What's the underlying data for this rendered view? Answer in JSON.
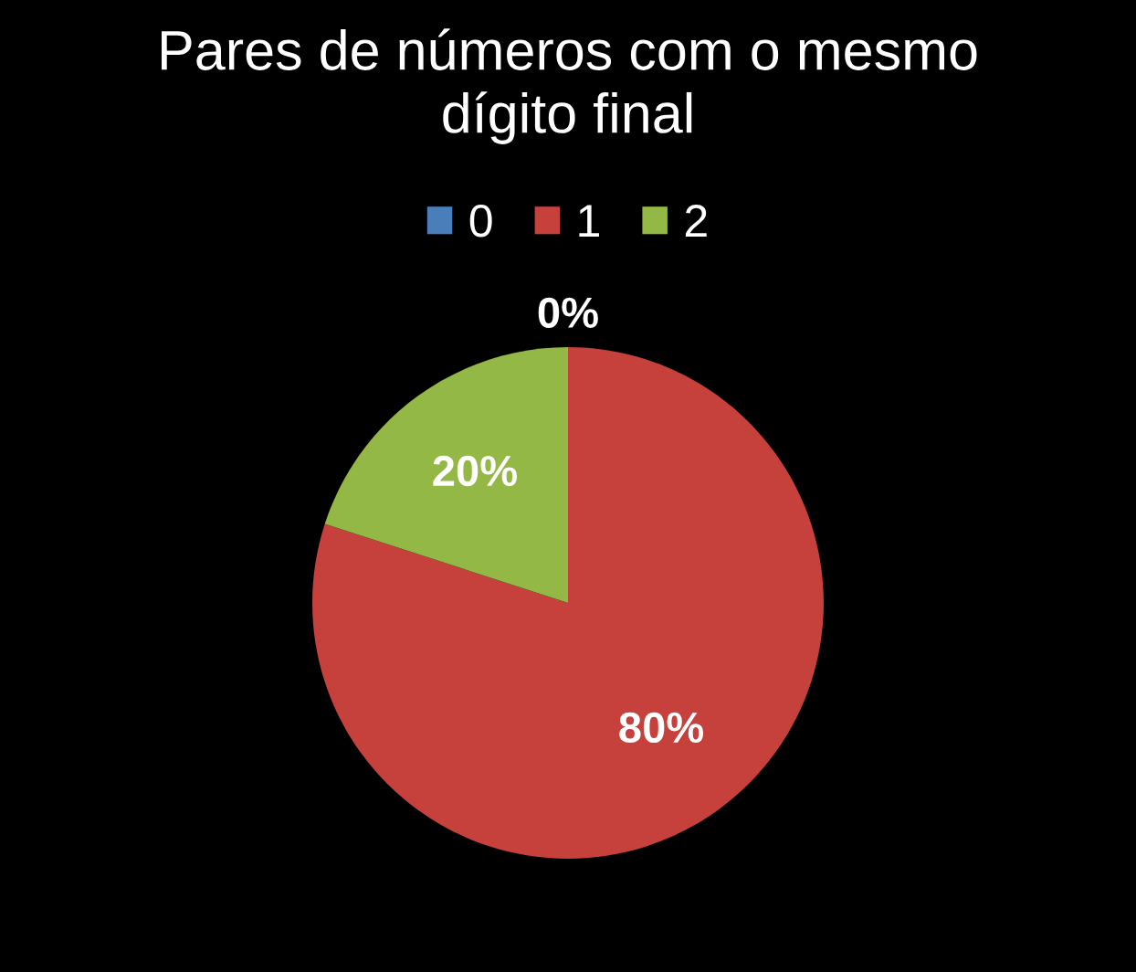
{
  "chart_data": {
    "type": "pie",
    "title": "Pares de números com o mesmo\ndígito final",
    "categories": [
      "0",
      "1",
      "2"
    ],
    "values": [
      0,
      80,
      20
    ],
    "colors": [
      "#4a7ebb",
      "#c6403c",
      "#93b845"
    ],
    "value_labels": [
      "0%",
      "80%",
      "20%"
    ],
    "legend": "top"
  }
}
